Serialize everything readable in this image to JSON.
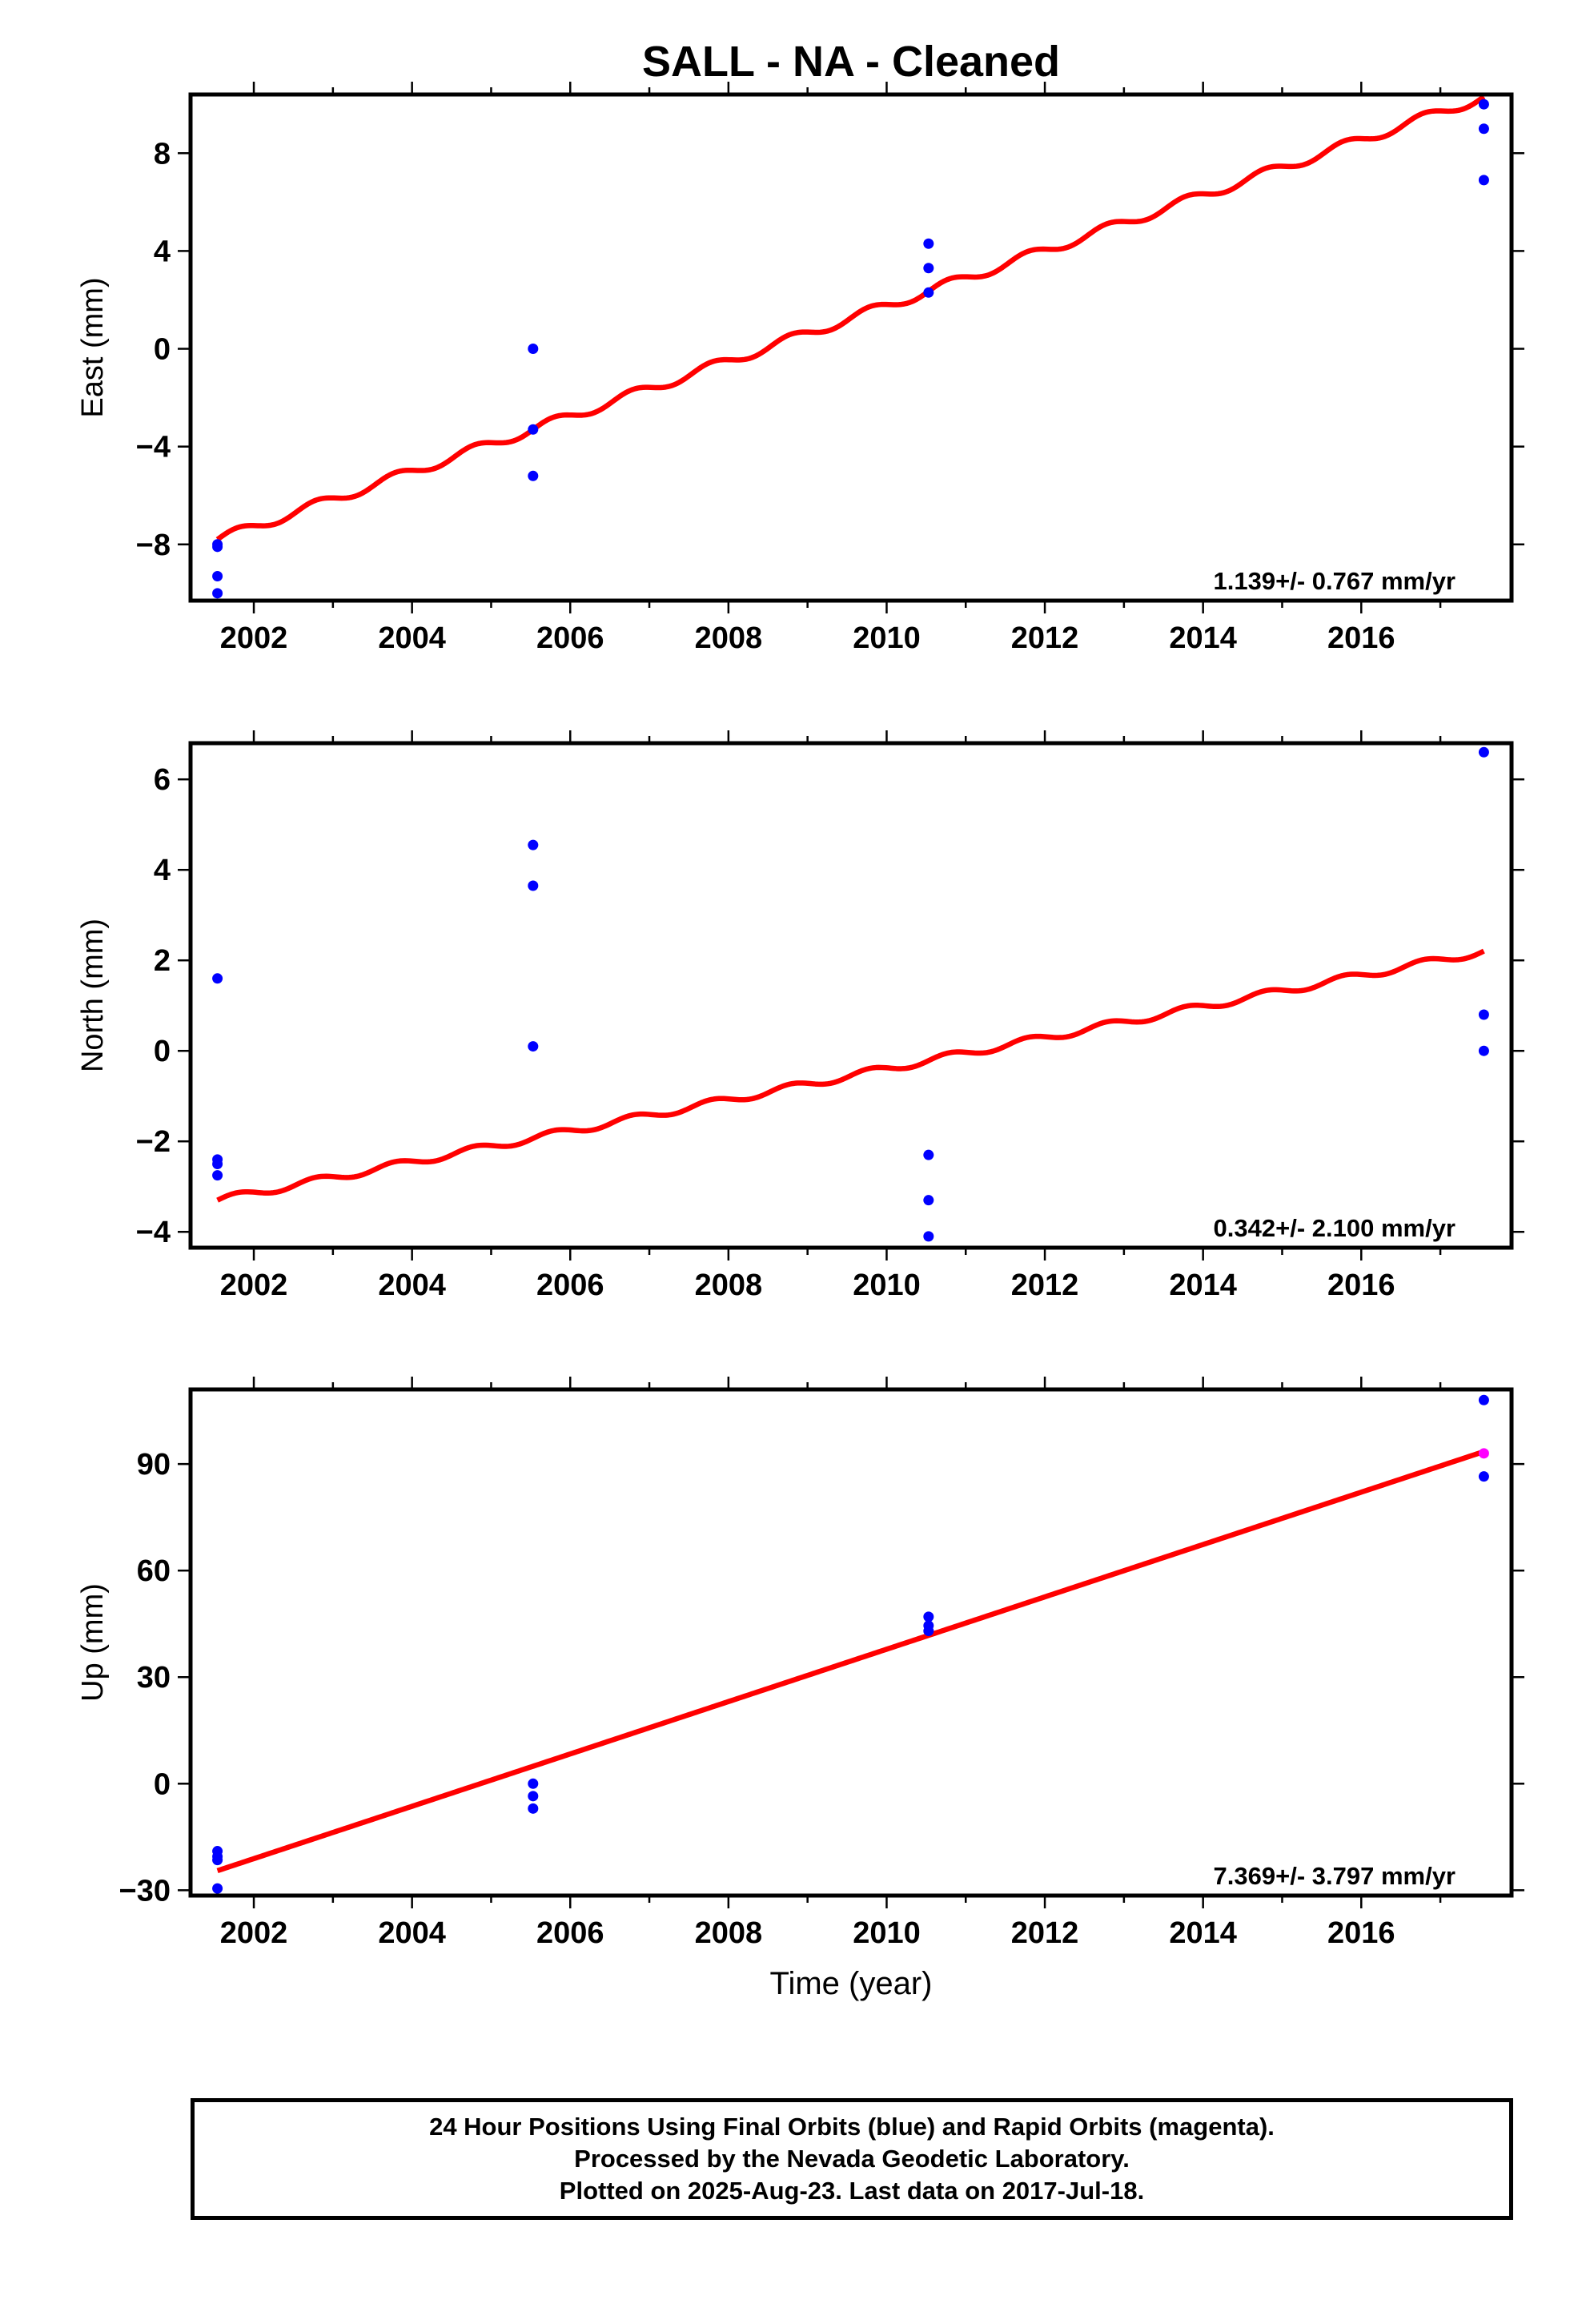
{
  "chart_data": {
    "title": "SALL  - NA - Cleaned",
    "type": "scatter",
    "xlabel": "Time (year)",
    "xlim": [
      2001.2,
      2017.9
    ],
    "xticks": [
      2002,
      2004,
      2006,
      2008,
      2010,
      2012,
      2014,
      2016
    ],
    "grid": false,
    "colors": {
      "final_orbits": "#0000ff",
      "rapid_orbits": "#ff00ff",
      "model": "#ff0000"
    },
    "panels": [
      {
        "ylabel": "East (mm)",
        "ylim": [
          -10.3,
          10.4
        ],
        "yticks": [
          -8,
          -4,
          0,
          4,
          8
        ],
        "velocity_label": "1.139+/- 0.767 mm/yr",
        "seasonal_amplitude": 0.2,
        "model_line": {
          "x": [
            2001.54,
            2017.55
          ],
          "y": [
            -7.8,
            10.3
          ]
        },
        "points": [
          {
            "x": 2001.54,
            "y": -8.0
          },
          {
            "x": 2001.54,
            "y": -8.1
          },
          {
            "x": 2001.54,
            "y": -9.3
          },
          {
            "x": 2001.54,
            "y": -10.0
          },
          {
            "x": 2005.53,
            "y": 0.0
          },
          {
            "x": 2005.53,
            "y": -3.3
          },
          {
            "x": 2005.53,
            "y": -5.2
          },
          {
            "x": 2010.53,
            "y": 4.3
          },
          {
            "x": 2010.53,
            "y": 3.3
          },
          {
            "x": 2010.53,
            "y": 2.3
          },
          {
            "x": 2017.55,
            "y": 10.0
          },
          {
            "x": 2017.55,
            "y": 9.0
          },
          {
            "x": 2017.55,
            "y": 6.9
          }
        ]
      },
      {
        "ylabel": "North (mm)",
        "ylim": [
          -4.35,
          6.8
        ],
        "yticks": [
          -4,
          -2,
          0,
          2,
          4,
          6
        ],
        "velocity_label": "0.342+/- 2.100 mm/yr",
        "seasonal_amplitude": 0.08,
        "model_line": {
          "x": [
            2001.54,
            2017.55
          ],
          "y": [
            -3.3,
            2.2
          ]
        },
        "points": [
          {
            "x": 2001.54,
            "y": 1.6
          },
          {
            "x": 2001.54,
            "y": -2.4
          },
          {
            "x": 2001.54,
            "y": -2.5
          },
          {
            "x": 2001.54,
            "y": -2.75
          },
          {
            "x": 2005.53,
            "y": 4.55
          },
          {
            "x": 2005.53,
            "y": 3.65
          },
          {
            "x": 2005.53,
            "y": 0.1
          },
          {
            "x": 2010.53,
            "y": -2.3
          },
          {
            "x": 2010.53,
            "y": -3.3
          },
          {
            "x": 2010.53,
            "y": -4.1
          },
          {
            "x": 2017.55,
            "y": 6.6
          },
          {
            "x": 2017.55,
            "y": 0.8
          },
          {
            "x": 2017.55,
            "y": 0.0
          }
        ]
      },
      {
        "ylabel": "Up (mm)",
        "ylim": [
          -31.5,
          111
        ],
        "yticks": [
          -30,
          0,
          30,
          60,
          90
        ],
        "velocity_label": "7.369+/- 3.797 mm/yr",
        "seasonal_amplitude": 0,
        "model_line": {
          "x": [
            2001.54,
            2017.55
          ],
          "y": [
            -24.5,
            93.5
          ]
        },
        "points": [
          {
            "x": 2001.54,
            "y": -19.0
          },
          {
            "x": 2001.54,
            "y": -20.5
          },
          {
            "x": 2001.54,
            "y": -21.5
          },
          {
            "x": 2001.54,
            "y": -29.5
          },
          {
            "x": 2005.53,
            "y": 0.0
          },
          {
            "x": 2005.53,
            "y": -3.5
          },
          {
            "x": 2005.53,
            "y": -7.0
          },
          {
            "x": 2010.53,
            "y": 47.0
          },
          {
            "x": 2010.53,
            "y": 44.5
          },
          {
            "x": 2010.53,
            "y": 43.0
          },
          {
            "x": 2017.55,
            "y": 108.0
          },
          {
            "x": 2017.55,
            "y": 93.0,
            "series": "rapid_orbits"
          },
          {
            "x": 2017.55,
            "y": 86.5
          }
        ]
      }
    ]
  },
  "footer": {
    "line1": "24 Hour Positions Using Final Orbits (blue) and Rapid Orbits (magenta).",
    "line2": "Processed by the Nevada Geodetic Laboratory.",
    "line3": "Plotted on 2025-Aug-23. Last data on 2017-Jul-18."
  }
}
